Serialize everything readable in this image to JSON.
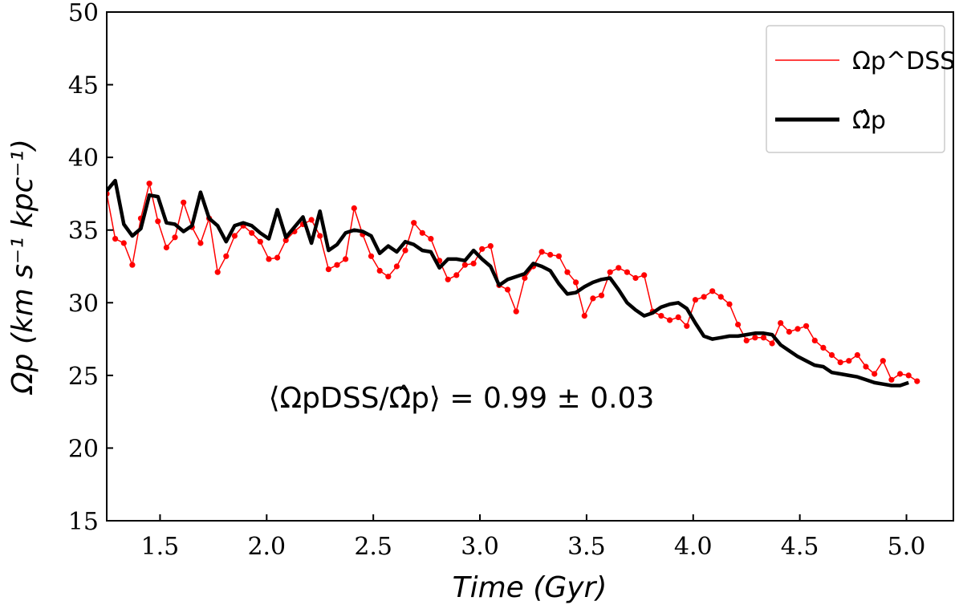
{
  "chart_data": {
    "type": "line",
    "xlabel": "Time (Gyr)",
    "ylabel": "Ωp (km s⁻¹ kpc⁻¹)",
    "xlim": [
      1.25,
      5.22
    ],
    "ylim": [
      15,
      50
    ],
    "xticks": [
      "1.5",
      "2.0",
      "2.5",
      "3.0",
      "3.5",
      "4.0",
      "4.5",
      "5.0"
    ],
    "yticks": [
      "15",
      "20",
      "25",
      "30",
      "35",
      "40",
      "45",
      "50"
    ],
    "legend_position": "top-right",
    "annotation": "⟨ΩpDSS/Ω̂p⟩ = 0.99 ± 0.03",
    "series": [
      {
        "name": "Ωp^DSS",
        "color": "#ff0000",
        "markers": true,
        "x": [
          1.25,
          1.29,
          1.33,
          1.37,
          1.41,
          1.45,
          1.49,
          1.53,
          1.57,
          1.61,
          1.65,
          1.69,
          1.73,
          1.77,
          1.81,
          1.85,
          1.89,
          1.93,
          1.97,
          2.01,
          2.05,
          2.09,
          2.13,
          2.17,
          2.21,
          2.25,
          2.29,
          2.33,
          2.37,
          2.41,
          2.45,
          2.49,
          2.53,
          2.57,
          2.61,
          2.65,
          2.69,
          2.73,
          2.77,
          2.81,
          2.85,
          2.89,
          2.93,
          2.97,
          3.01,
          3.05,
          3.09,
          3.13,
          3.17,
          3.21,
          3.25,
          3.29,
          3.33,
          3.37,
          3.41,
          3.45,
          3.49,
          3.53,
          3.57,
          3.61,
          3.65,
          3.69,
          3.73,
          3.77,
          3.81,
          3.85,
          3.89,
          3.93,
          3.97,
          4.01,
          4.05,
          4.09,
          4.13,
          4.17,
          4.21,
          4.25,
          4.29,
          4.33,
          4.37,
          4.41,
          4.45,
          4.49,
          4.53,
          4.57,
          4.61,
          4.65,
          4.69,
          4.73,
          4.77,
          4.81,
          4.85,
          4.89,
          4.93,
          4.97,
          5.01,
          5.05
        ],
        "values": [
          37.5,
          34.4,
          34.1,
          32.6,
          35.8,
          38.2,
          35.6,
          33.8,
          34.5,
          36.9,
          35.2,
          34.1,
          35.8,
          32.1,
          33.2,
          34.6,
          35.3,
          34.8,
          34.2,
          33.0,
          33.1,
          34.3,
          34.9,
          35.4,
          35.7,
          34.6,
          32.3,
          32.6,
          33.0,
          36.5,
          34.7,
          33.2,
          32.2,
          31.8,
          32.5,
          33.6,
          35.5,
          34.8,
          34.4,
          32.9,
          31.6,
          31.9,
          32.6,
          32.7,
          33.7,
          33.9,
          31.2,
          30.9,
          29.4,
          31.7,
          32.5,
          33.5,
          33.3,
          33.2,
          32.1,
          31.4,
          29.1,
          30.3,
          30.5,
          32.1,
          32.4,
          32.1,
          31.7,
          31.9,
          29.4,
          29.1,
          28.8,
          29.0,
          28.4,
          30.2,
          30.4,
          30.8,
          30.4,
          29.9,
          28.5,
          27.4,
          27.6,
          27.6,
          27.2,
          28.6,
          28.0,
          28.2,
          28.4,
          27.4,
          26.9,
          26.4,
          25.9,
          26.0,
          26.4,
          25.6,
          25.1,
          26.0,
          24.7,
          25.1,
          25.0,
          24.6
        ]
      },
      {
        "name": "Ω̂p",
        "color": "#000000",
        "markers": false,
        "x": [
          1.25,
          1.29,
          1.33,
          1.37,
          1.41,
          1.45,
          1.49,
          1.53,
          1.57,
          1.61,
          1.65,
          1.69,
          1.73,
          1.77,
          1.81,
          1.85,
          1.89,
          1.93,
          1.97,
          2.01,
          2.05,
          2.09,
          2.13,
          2.17,
          2.21,
          2.25,
          2.29,
          2.33,
          2.37,
          2.41,
          2.45,
          2.49,
          2.53,
          2.57,
          2.61,
          2.65,
          2.69,
          2.73,
          2.77,
          2.81,
          2.85,
          2.89,
          2.93,
          2.97,
          3.01,
          3.05,
          3.09,
          3.13,
          3.17,
          3.21,
          3.25,
          3.29,
          3.33,
          3.37,
          3.41,
          3.45,
          3.49,
          3.53,
          3.57,
          3.61,
          3.65,
          3.69,
          3.73,
          3.77,
          3.81,
          3.85,
          3.89,
          3.93,
          3.97,
          4.01,
          4.05,
          4.09,
          4.13,
          4.17,
          4.21,
          4.25,
          4.29,
          4.33,
          4.37,
          4.41,
          4.45,
          4.49,
          4.53,
          4.57,
          4.61,
          4.65,
          4.69,
          4.73,
          4.77,
          4.81,
          4.85,
          4.89,
          4.93,
          4.97,
          5.01
        ],
        "values": [
          37.7,
          38.4,
          35.4,
          34.6,
          35.1,
          37.4,
          37.3,
          35.5,
          35.4,
          34.9,
          35.3,
          37.6,
          35.8,
          35.3,
          34.2,
          35.3,
          35.5,
          35.3,
          34.8,
          34.4,
          36.4,
          34.5,
          35.2,
          35.9,
          34.1,
          36.3,
          33.6,
          34.0,
          34.8,
          35.0,
          34.9,
          34.6,
          33.4,
          33.9,
          33.5,
          34.2,
          34.0,
          33.6,
          33.5,
          32.4,
          33.0,
          33.0,
          32.9,
          33.6,
          33.0,
          32.5,
          31.2,
          31.6,
          31.8,
          32.0,
          32.7,
          32.5,
          32.2,
          31.3,
          30.6,
          30.7,
          31.1,
          31.4,
          31.6,
          31.7,
          30.9,
          30.0,
          29.5,
          29.1,
          29.3,
          29.7,
          29.9,
          30.0,
          29.6,
          28.6,
          27.7,
          27.5,
          27.6,
          27.7,
          27.7,
          27.8,
          27.9,
          27.9,
          27.8,
          27.1,
          26.7,
          26.3,
          26.0,
          25.7,
          25.6,
          25.2,
          25.1,
          25.0,
          24.9,
          24.7,
          24.5,
          24.4,
          24.3,
          24.3,
          24.5
        ]
      }
    ]
  }
}
